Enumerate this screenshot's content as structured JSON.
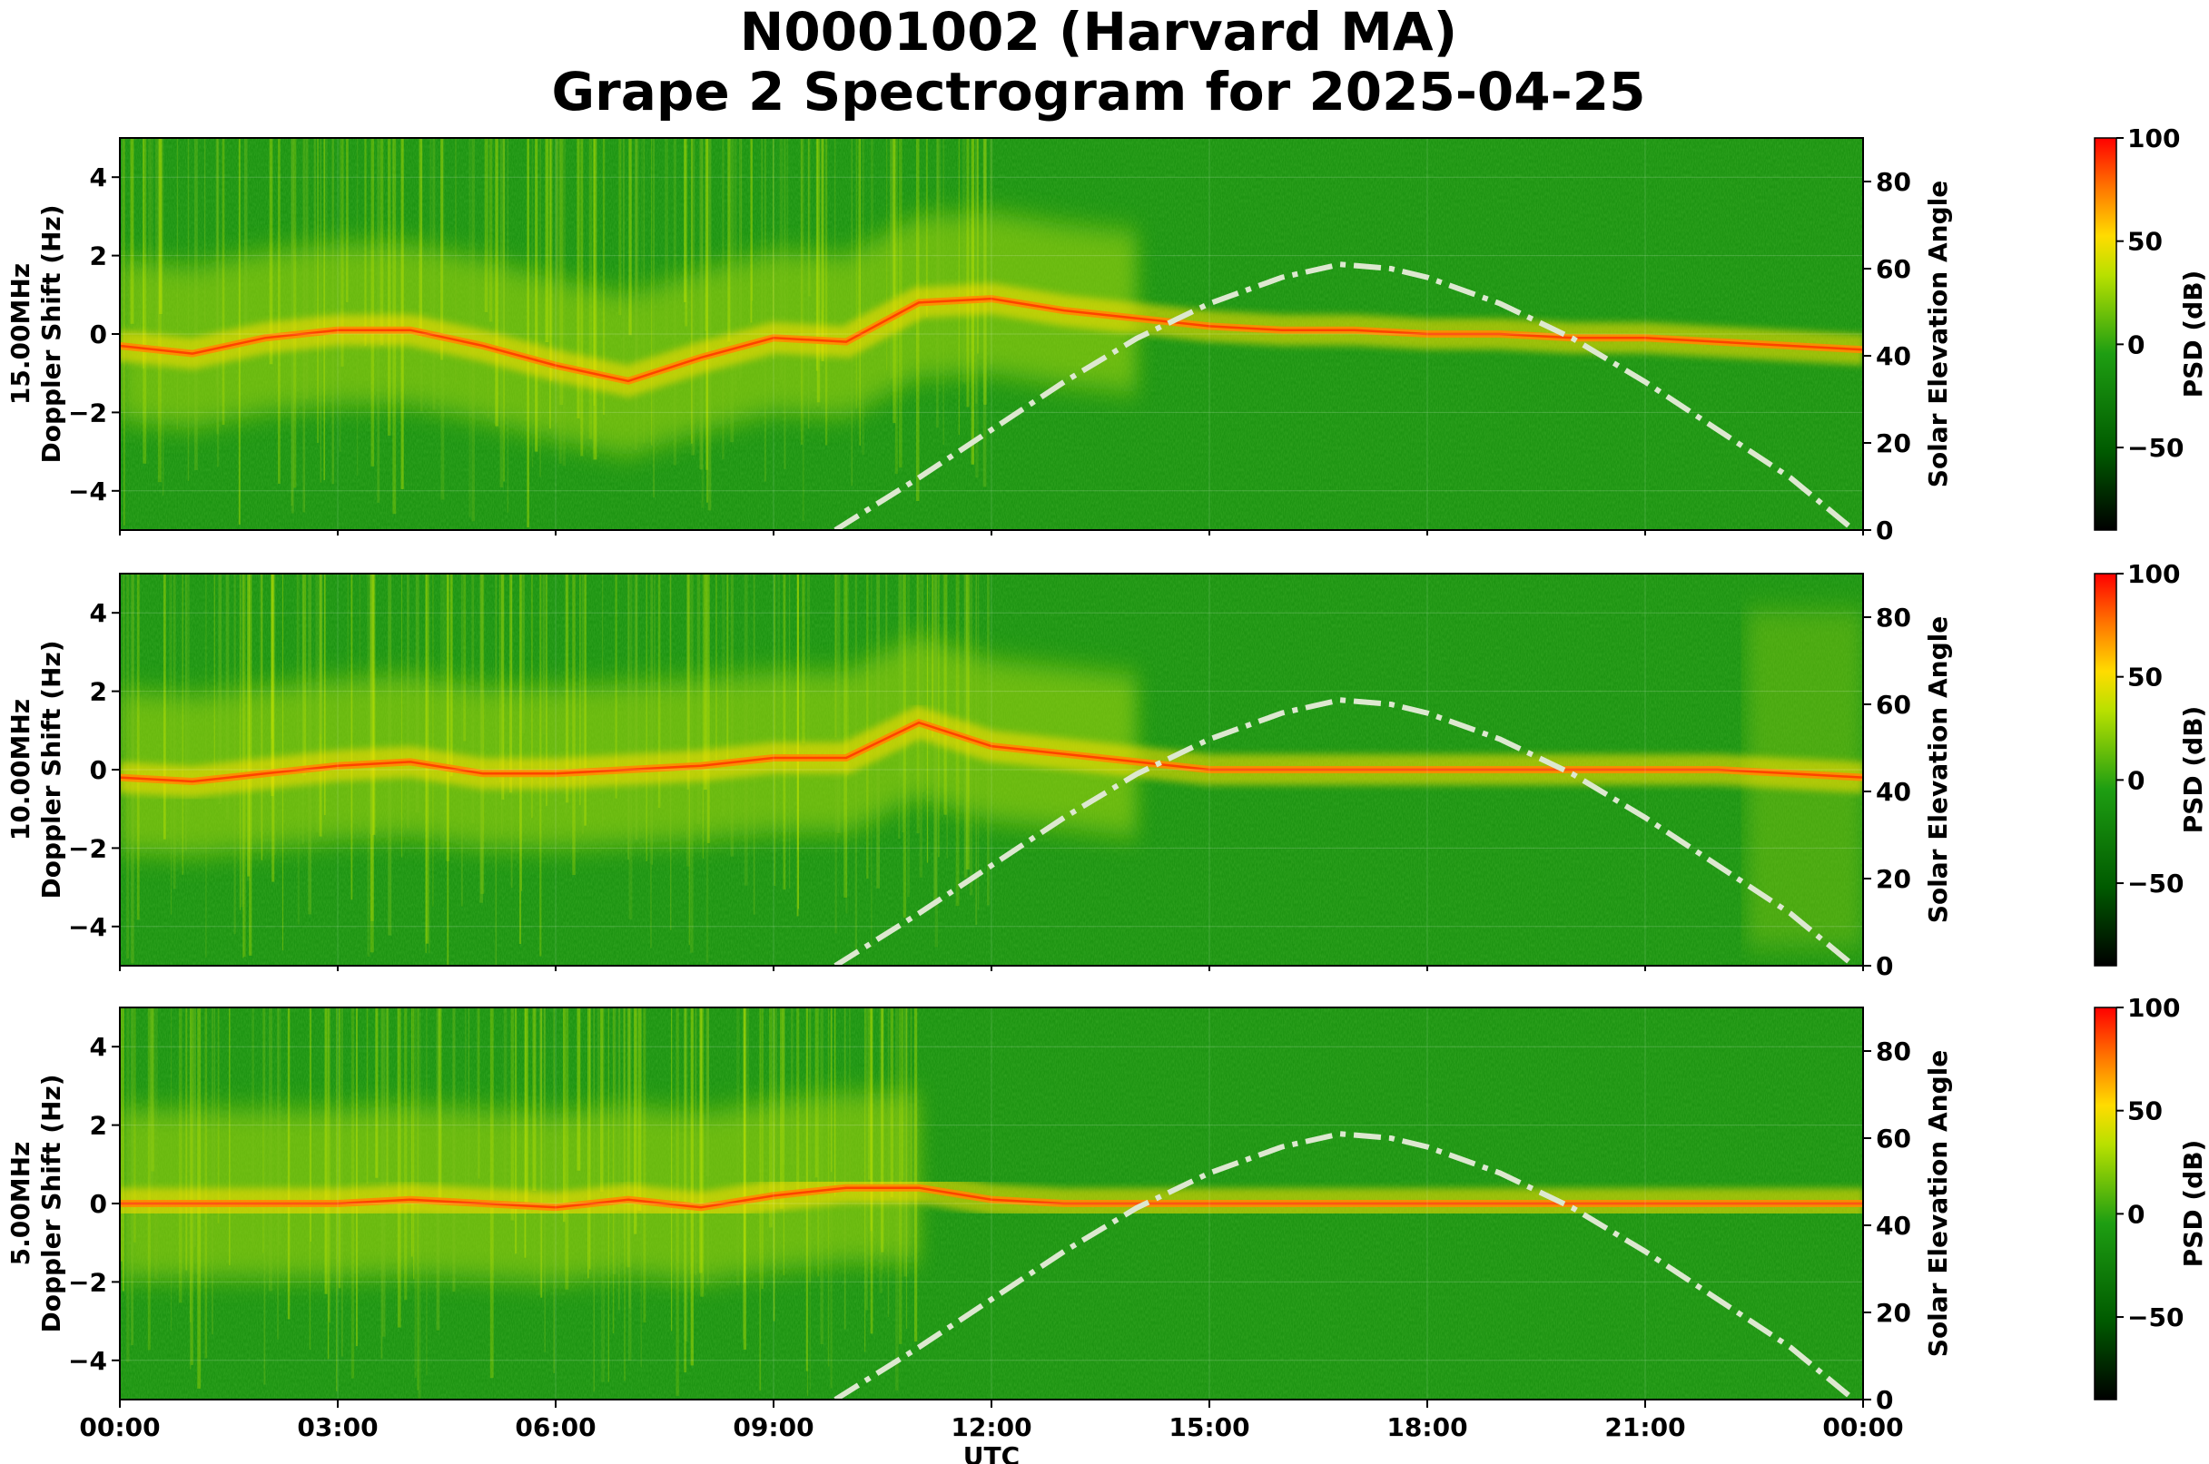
{
  "title": "N0001002 (Harvard MA)",
  "subtitle": "Grape 2 Spectrogram for 2025-04-25",
  "colors": {
    "line": "#dde8d0",
    "spectro_background": "#0a8a0a",
    "colormap": [
      "#000000",
      "#006400",
      "#1a9a10",
      "#cfe800",
      "#ffd000",
      "#ff6000",
      "#ff0000"
    ]
  },
  "chart_data": [
    {
      "type": "heatmap",
      "panel": "15.00MHz",
      "ylabel": "15.00MHz\nDoppler Shift (Hz)",
      "ylabel_lines": [
        "15.00MHz",
        "Doppler Shift (Hz)"
      ],
      "ylim": [
        -5,
        5
      ],
      "y_ticks": [
        "4",
        "2",
        "0",
        "−2",
        "−4"
      ],
      "y2label": "Solar Elevation Angle",
      "y2lim": [
        0,
        90
      ],
      "y2_ticks": [
        "0",
        "20",
        "40",
        "60",
        "80"
      ],
      "colorbar_label": "PSD (dB)",
      "colorbar_ticks": [
        "100",
        "50",
        "0",
        "−50"
      ],
      "colorbar_range": [
        -90,
        100
      ],
      "doppler_trace": [
        [
          0,
          -0.3
        ],
        [
          1,
          -0.5
        ],
        [
          2,
          -0.1
        ],
        [
          3,
          0.1
        ],
        [
          4,
          0.1
        ],
        [
          5,
          -0.3
        ],
        [
          6,
          -0.8
        ],
        [
          7,
          -1.2
        ],
        [
          8,
          -0.6
        ],
        [
          9,
          -0.1
        ],
        [
          10,
          -0.2
        ],
        [
          11,
          0.8
        ],
        [
          12,
          0.9
        ],
        [
          13,
          0.6
        ],
        [
          14,
          0.4
        ],
        [
          15,
          0.2
        ],
        [
          16,
          0.1
        ],
        [
          17,
          0.1
        ],
        [
          18,
          0
        ],
        [
          19,
          0
        ],
        [
          20,
          -0.1
        ],
        [
          21,
          -0.1
        ],
        [
          22,
          -0.2
        ],
        [
          23,
          -0.3
        ],
        [
          24,
          -0.4
        ]
      ],
      "solar_elevation": [
        [
          9.85,
          0
        ],
        [
          11,
          12
        ],
        [
          12,
          23
        ],
        [
          13,
          34
        ],
        [
          14,
          44
        ],
        [
          15,
          52
        ],
        [
          16,
          58
        ],
        [
          16.8,
          61
        ],
        [
          17.5,
          60
        ],
        [
          18,
          58
        ],
        [
          19,
          52
        ],
        [
          20,
          44
        ],
        [
          21,
          34
        ],
        [
          22,
          23
        ],
        [
          23,
          12
        ],
        [
          23.8,
          1
        ]
      ]
    },
    {
      "type": "heatmap",
      "panel": "10.00MHz",
      "ylabel": "10.00MHz\nDoppler Shift (Hz)",
      "ylabel_lines": [
        "10.00MHz",
        "Doppler Shift (Hz)"
      ],
      "ylim": [
        -5,
        5
      ],
      "y_ticks": [
        "4",
        "2",
        "0",
        "−2",
        "−4"
      ],
      "y2label": "Solar Elevation Angle",
      "y2lim": [
        0,
        90
      ],
      "y2_ticks": [
        "0",
        "20",
        "40",
        "60",
        "80"
      ],
      "colorbar_label": "PSD (dB)",
      "colorbar_ticks": [
        "100",
        "50",
        "0",
        "−50"
      ],
      "colorbar_range": [
        -90,
        100
      ],
      "doppler_trace": [
        [
          0,
          -0.2
        ],
        [
          1,
          -0.3
        ],
        [
          2,
          -0.1
        ],
        [
          3,
          0.1
        ],
        [
          4,
          0.2
        ],
        [
          5,
          -0.1
        ],
        [
          6,
          -0.1
        ],
        [
          7,
          0.0
        ],
        [
          8,
          0.1
        ],
        [
          9,
          0.3
        ],
        [
          10,
          0.3
        ],
        [
          11,
          1.2
        ],
        [
          12,
          0.6
        ],
        [
          13,
          0.4
        ],
        [
          14,
          0.2
        ],
        [
          15,
          0.0
        ],
        [
          16,
          0.0
        ],
        [
          17,
          0.0
        ],
        [
          18,
          0.0
        ],
        [
          19,
          0.0
        ],
        [
          20,
          0.0
        ],
        [
          21,
          0.0
        ],
        [
          22,
          0.0
        ],
        [
          23,
          -0.1
        ],
        [
          24,
          -0.2
        ]
      ],
      "solar_elevation": [
        [
          9.85,
          0
        ],
        [
          11,
          12
        ],
        [
          12,
          23
        ],
        [
          13,
          34
        ],
        [
          14,
          44
        ],
        [
          15,
          52
        ],
        [
          16,
          58
        ],
        [
          16.8,
          61
        ],
        [
          17.5,
          60
        ],
        [
          18,
          58
        ],
        [
          19,
          52
        ],
        [
          20,
          44
        ],
        [
          21,
          34
        ],
        [
          22,
          23
        ],
        [
          23,
          12
        ],
        [
          23.8,
          1
        ]
      ]
    },
    {
      "type": "heatmap",
      "panel": "5.00MHz",
      "ylabel": "5.00MHz\nDoppler Shift (Hz)",
      "ylabel_lines": [
        "5.00MHz",
        "Doppler Shift (Hz)"
      ],
      "ylim": [
        -5,
        5
      ],
      "y_ticks": [
        "4",
        "2",
        "0",
        "−2",
        "−4"
      ],
      "y2label": "Solar Elevation Angle",
      "y2lim": [
        0,
        90
      ],
      "y2_ticks": [
        "0",
        "20",
        "40",
        "60",
        "80"
      ],
      "xlabel": "UTC",
      "x_ticks": [
        "00:00",
        "03:00",
        "06:00",
        "09:00",
        "12:00",
        "15:00",
        "18:00",
        "21:00",
        "00:00"
      ],
      "xlim_hours": [
        0,
        24
      ],
      "colorbar_label": "PSD (dB)",
      "colorbar_ticks": [
        "100",
        "50",
        "0",
        "−50"
      ],
      "colorbar_range": [
        -90,
        100
      ],
      "doppler_trace": [
        [
          0,
          0
        ],
        [
          1,
          0
        ],
        [
          2,
          0
        ],
        [
          3,
          0
        ],
        [
          4,
          0.1
        ],
        [
          5,
          0
        ],
        [
          6,
          -0.1
        ],
        [
          7,
          0.1
        ],
        [
          8,
          -0.1
        ],
        [
          9,
          0.2
        ],
        [
          10,
          0.4
        ],
        [
          11,
          0.4
        ],
        [
          12,
          0.1
        ],
        [
          13,
          0
        ],
        [
          14,
          0
        ],
        [
          15,
          0
        ],
        [
          16,
          0
        ],
        [
          17,
          0
        ],
        [
          18,
          0
        ],
        [
          19,
          0
        ],
        [
          20,
          0
        ],
        [
          21,
          0
        ],
        [
          22,
          0
        ],
        [
          23,
          0
        ],
        [
          24,
          0
        ]
      ],
      "solar_elevation": [
        [
          9.85,
          0
        ],
        [
          11,
          12
        ],
        [
          12,
          23
        ],
        [
          13,
          34
        ],
        [
          14,
          44
        ],
        [
          15,
          52
        ],
        [
          16,
          58
        ],
        [
          16.8,
          61
        ],
        [
          17.5,
          60
        ],
        [
          18,
          58
        ],
        [
          19,
          52
        ],
        [
          20,
          44
        ],
        [
          21,
          34
        ],
        [
          22,
          23
        ],
        [
          23,
          12
        ],
        [
          23.8,
          1
        ]
      ]
    }
  ]
}
